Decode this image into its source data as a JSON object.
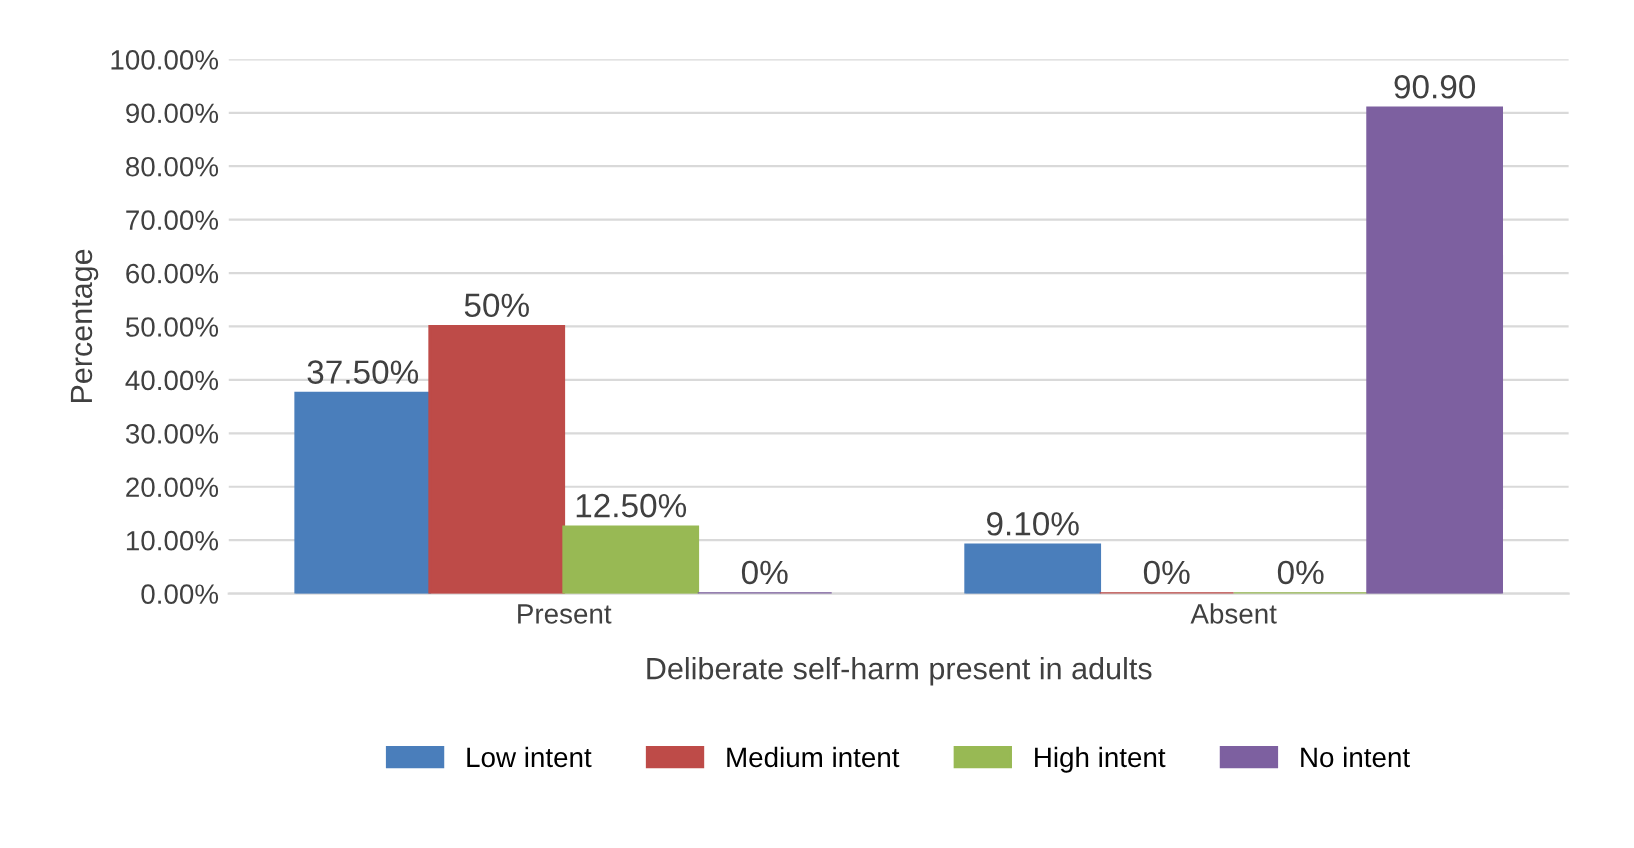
{
  "chart_data": {
    "type": "bar",
    "xlabel": "Deliberate self-harm present in adults",
    "ylabel": "Percentage",
    "categories": [
      "Present",
      "Absent"
    ],
    "series": [
      {
        "name": "Low intent",
        "color": "#4a7ebb",
        "values": [
          37.5,
          9.1
        ],
        "value_labels": [
          "37.50%",
          "9.10%"
        ]
      },
      {
        "name": "Medium intent",
        "color": "#be4b48",
        "values": [
          50,
          0
        ],
        "value_labels": [
          "50%",
          "0%"
        ]
      },
      {
        "name": "High intent",
        "color": "#98b954",
        "values": [
          12.5,
          0
        ],
        "value_labels": [
          "12.50%",
          "0%"
        ]
      },
      {
        "name": "No intent",
        "color": "#7d60a0",
        "values": [
          0,
          90.9
        ],
        "value_labels": [
          "0%",
          "90.90"
        ]
      }
    ],
    "ylim": [
      0,
      100
    ],
    "yticks": [
      {
        "value": 0,
        "label": "0.00%"
      },
      {
        "value": 10,
        "label": "10.00%"
      },
      {
        "value": 20,
        "label": "20.00%"
      },
      {
        "value": 30,
        "label": "30.00%"
      },
      {
        "value": 40,
        "label": "40.00%"
      },
      {
        "value": 50,
        "label": "50.00%"
      },
      {
        "value": 60,
        "label": "60.00%"
      },
      {
        "value": 70,
        "label": "70.00%"
      },
      {
        "value": 80,
        "label": "80.00%"
      },
      {
        "value": 90,
        "label": "90.00%"
      },
      {
        "value": 100,
        "label": "100.00%"
      }
    ],
    "grid": "y",
    "legend": "bottom"
  }
}
